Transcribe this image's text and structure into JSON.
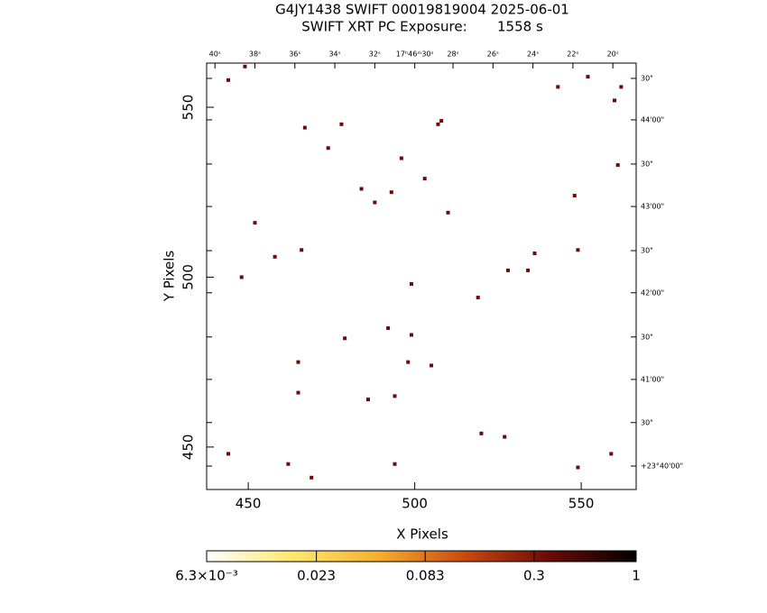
{
  "chart_data": {
    "type": "scatter",
    "title": "G4JY1438 SWIFT 00019819004 2025-06-01",
    "subtitle": "SWIFT XRT PC Exposure:       1558 s",
    "x_label": "X Pixels",
    "y_label": "Y Pixels",
    "xlim": [
      437.5,
      566.5
    ],
    "ylim": [
      437.5,
      563
    ],
    "xticks": [
      450,
      500,
      550
    ],
    "yticks": [
      450,
      500,
      550
    ],
    "top_ticks": [
      {
        "value": 440,
        "label": "40ˢ"
      },
      {
        "value": 452,
        "label": "38ˢ"
      },
      {
        "value": 464,
        "label": "36ˢ"
      },
      {
        "value": 476,
        "label": "34ˢ"
      },
      {
        "value": 488,
        "label": "32ˢ"
      },
      {
        "value": 500,
        "label": "17ʰ46ᵐ30ˢ"
      },
      {
        "value": 511.5,
        "label": "28ˢ"
      },
      {
        "value": 523.5,
        "label": "26ˢ"
      },
      {
        "value": 535.5,
        "label": "24ˢ"
      },
      {
        "value": 547.5,
        "label": "22ˢ"
      },
      {
        "value": 559.5,
        "label": "20ˢ"
      }
    ],
    "right_ticks": [
      {
        "value": 558.5,
        "label": "30\""
      },
      {
        "value": 546.3,
        "label": "44'00\""
      },
      {
        "value": 533.3,
        "label": "30\""
      },
      {
        "value": 520.8,
        "label": "43'00\""
      },
      {
        "value": 507.8,
        "label": "30\""
      },
      {
        "value": 495.4,
        "label": "42'00\""
      },
      {
        "value": 482.4,
        "label": "30\""
      },
      {
        "value": 469.9,
        "label": "41'00\""
      },
      {
        "value": 457.2,
        "label": "30\""
      },
      {
        "value": 444.4,
        "label": "+23°40'00\""
      }
    ],
    "series": [
      {
        "color": "#6b0a0a",
        "x": [
          444,
          449,
          467,
          478,
          474,
          496,
          507,
          508,
          503,
          484,
          493,
          488,
          510,
          452,
          543,
          552,
          562,
          560,
          561,
          548,
          466,
          458,
          549,
          536,
          528,
          534,
          448,
          499,
          519,
          492,
          499,
          479,
          465,
          498,
          505,
          465,
          486,
          494,
          520,
          527,
          444,
          462,
          494,
          469,
          559,
          549
        ],
        "y": [
          558,
          562,
          544,
          545,
          538,
          535,
          545,
          546,
          529,
          526,
          525,
          522,
          519,
          516,
          556,
          559,
          556,
          552,
          533,
          524,
          508,
          506,
          508,
          507,
          502,
          502,
          500,
          498,
          494,
          485,
          483,
          482,
          475,
          475,
          474,
          466,
          464,
          465,
          454,
          453,
          448,
          445,
          445,
          441,
          448,
          444
        ]
      }
    ],
    "colorbar": {
      "scale": "log",
      "lim": [
        0.0063,
        1
      ],
      "colors": [
        "#ffffff",
        "#ffe870",
        "#f5b030",
        "#c84a10",
        "#6a0a05",
        "#000000"
      ],
      "ticks": [
        {
          "value": 0.0063,
          "label": "6.3×10⁻³"
        },
        0.023,
        0.083,
        0.3,
        1
      ]
    }
  }
}
